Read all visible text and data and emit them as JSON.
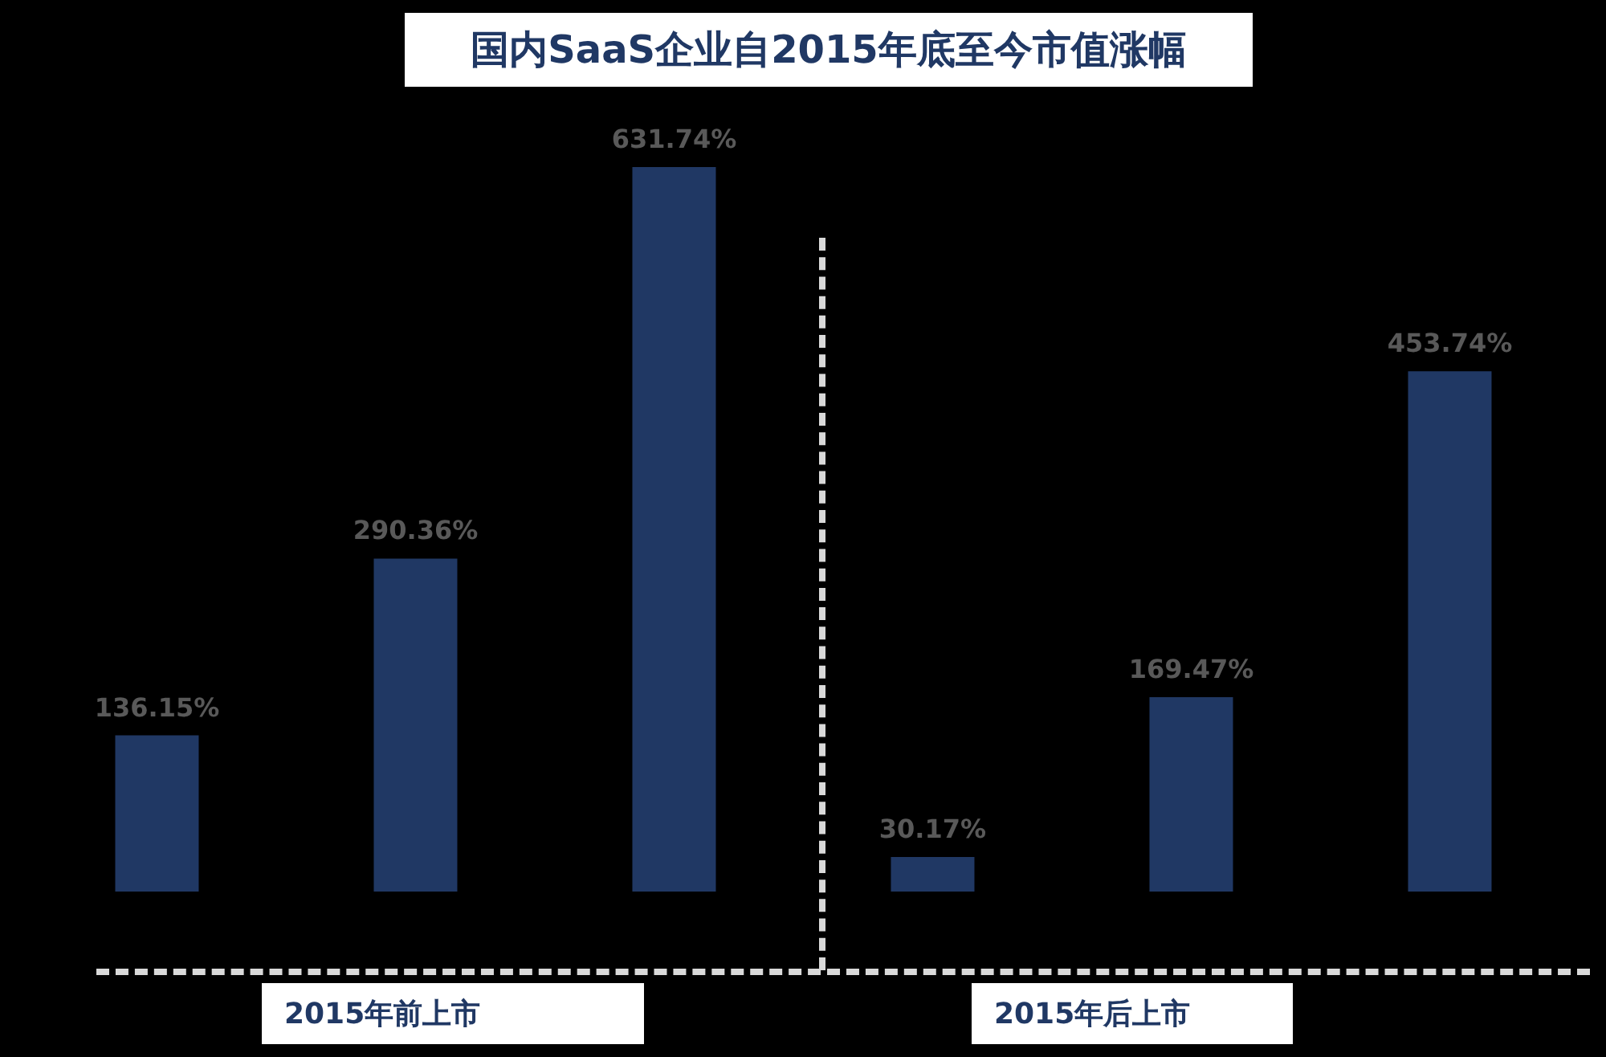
{
  "chart_data": {
    "type": "bar",
    "title": "国内SaaS企业自2015年底至今市值涨幅",
    "categories": [
      null,
      null,
      null,
      null,
      null,
      null
    ],
    "values": [
      136.15,
      290.36,
      631.74,
      30.17,
      169.47,
      453.74
    ],
    "value_labels": [
      "136.15%",
      "290.36%",
      "631.74%",
      "30.17%",
      "169.47%",
      "453.74%"
    ],
    "color": "#203864",
    "annotations": [
      "2015年前上市",
      "2015年后上市"
    ]
  }
}
